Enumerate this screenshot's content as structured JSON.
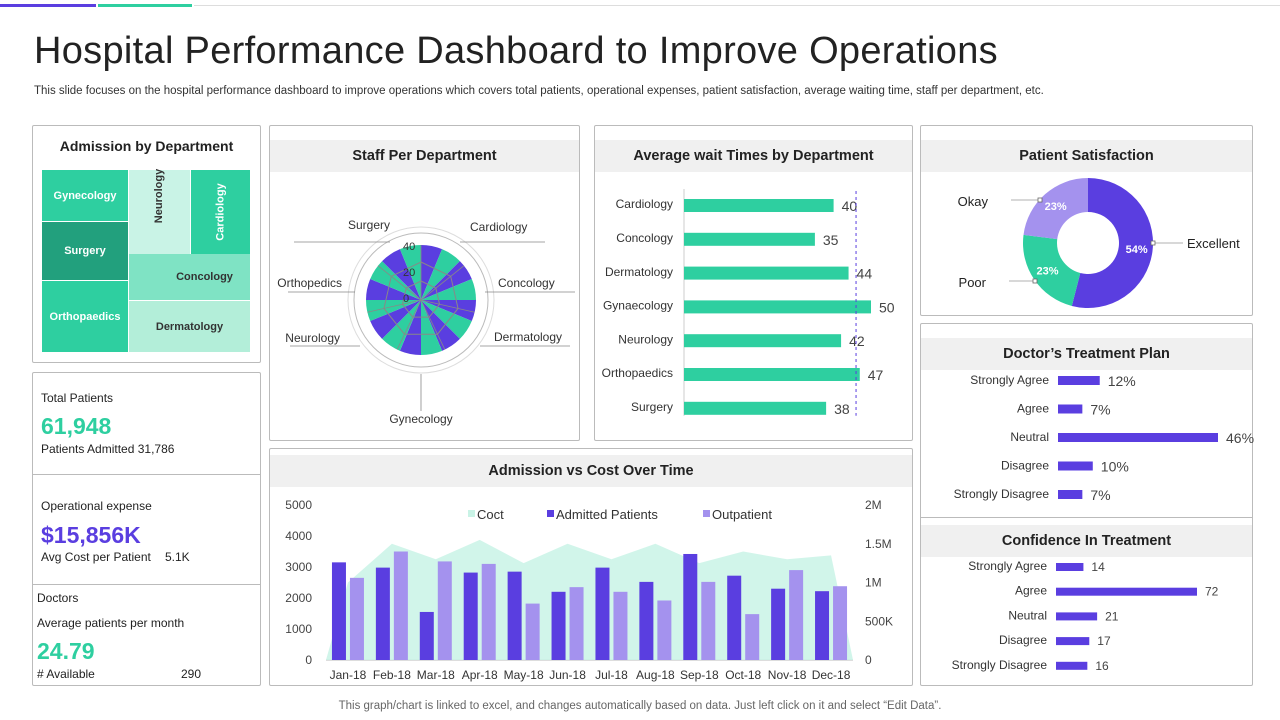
{
  "header": {
    "title": "Hospital Performance Dashboard to Improve Operations",
    "subtitle": "This slide focuses on the hospital performance dashboard to improve operations which covers total patients, operational expenses, patient satisfaction, average waiting time, staff per department, etc."
  },
  "footer": {
    "note": "This graph/chart is linked to excel,  and changes automatically based on data. Just left click on it and select “Edit Data”."
  },
  "colors": {
    "teal": "#2ecfa0",
    "purple": "#5a3ee0",
    "lavender": "#a492ee",
    "mint": "#c9f3e6",
    "darkTeal": "#22a07d"
  },
  "admission_by_department": {
    "title": "Admission  by Department",
    "cells": [
      "Gynecology",
      "Neurology",
      "Cardiology",
      "Surgery",
      "Concology",
      "Orthopaedics",
      "Dermatology"
    ]
  },
  "stats": {
    "total_patients_label": "Total Patients",
    "total_patients_value": "61,948",
    "patients_admitted": "Patients Admitted 31,786",
    "op_expense_label": "Operational expense",
    "op_expense_value": "$15,856K",
    "avg_cost_label": "Avg  Cost per Patient",
    "avg_cost_value": "5.1K",
    "doctors_label": "Doctors",
    "avg_patients_label": "Average  patients per month",
    "avg_patients_value": "24.79",
    "available_label": "# Available",
    "available_value": "290"
  },
  "chart_data": [
    {
      "id": "staff",
      "type": "radar",
      "title": "Staff Per Department",
      "categories": [
        "Surgery",
        "Cardiology",
        "Concology",
        "Dermatology",
        "Gynecology",
        "Neurology",
        "Orthopedics"
      ],
      "tick_labels": [
        "40",
        "20",
        "0"
      ]
    },
    {
      "id": "wait",
      "type": "bar",
      "orientation": "horizontal",
      "title": "Average wait Times by Department",
      "categories": [
        "Cardiology",
        "Concology",
        "Dermatology",
        "Gynaecology",
        "Neurology",
        "Orthopaedics",
        "Surgery"
      ],
      "values": [
        40,
        35,
        44,
        50,
        42,
        47,
        38
      ],
      "labels": [
        "40",
        "35",
        "44",
        "50",
        "42",
        "47",
        "38"
      ],
      "reference_line": 46
    },
    {
      "id": "satisfaction",
      "type": "pie",
      "title": "Patient Satisfaction",
      "categories": [
        "Excellent",
        "Poor",
        "Okay"
      ],
      "values": [
        54,
        23,
        23
      ],
      "labels": [
        "54%",
        "23%",
        "23%"
      ]
    },
    {
      "id": "admission_cost",
      "type": "bar",
      "title": "Admission  vs Cost Over Time",
      "categories": [
        "Jan-18",
        "Feb-18",
        "Mar-18",
        "Apr-18",
        "May-18",
        "Jun-18",
        "Jul-18",
        "Aug-18",
        "Sep-18",
        "Oct-18",
        "Nov-18",
        "Dec-18"
      ],
      "series": [
        {
          "name": "Coct",
          "kind": "area",
          "axis": "right",
          "values": [
            1.0,
            1.5,
            1.3,
            1.55,
            1.25,
            1.5,
            1.3,
            1.5,
            1.25,
            1.4,
            1.3,
            1.35
          ]
        },
        {
          "name": "Admitted Patients",
          "kind": "bar",
          "values": [
            3150,
            2980,
            1550,
            2820,
            2850,
            2200,
            2980,
            2520,
            3420,
            2720,
            2300,
            2220
          ]
        },
        {
          "name": "Outpatient",
          "kind": "bar",
          "values": [
            2650,
            3500,
            3180,
            3100,
            1820,
            2350,
            2200,
            1920,
            2520,
            1480,
            2900,
            2380
          ]
        }
      ],
      "ylim": [
        0,
        5000
      ],
      "yticks": [
        "5000",
        "4000",
        "3000",
        "2000",
        "1000",
        "0"
      ],
      "y2lim": [
        0,
        2
      ],
      "y2ticks": [
        "2M",
        "1.5M",
        "1M",
        "500K",
        "0"
      ]
    },
    {
      "id": "treatment_plan",
      "type": "bar",
      "orientation": "horizontal",
      "title": "Doctor’s Treatment Plan",
      "categories": [
        "Strongly Agree",
        "Agree",
        "Neutral",
        "Disagree",
        "Strongly Disagree"
      ],
      "values": [
        12,
        7,
        46,
        10,
        7
      ],
      "labels": [
        "12%",
        "7%",
        "46%",
        "10%",
        "7%"
      ]
    },
    {
      "id": "confidence",
      "type": "bar",
      "orientation": "horizontal",
      "title": "Confidence In Treatment",
      "categories": [
        "Strongly Agree",
        "Agree",
        "Neutral",
        "Disagree",
        "Strongly Disagree"
      ],
      "values": [
        14,
        72,
        21,
        17,
        16
      ],
      "labels": [
        "14",
        "72",
        "21",
        "17",
        "16"
      ]
    }
  ]
}
